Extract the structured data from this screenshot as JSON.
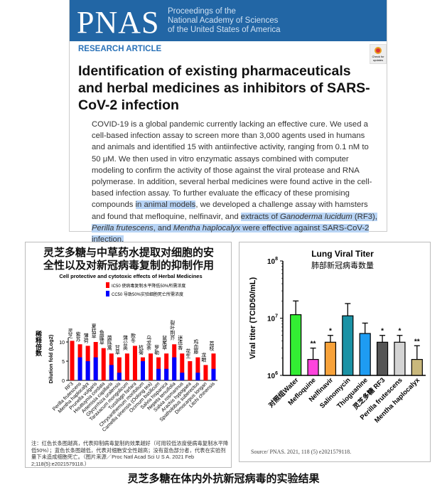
{
  "pnas": {
    "logo": "PNAS",
    "tagline": [
      "Proceedings of the",
      "National Academy of Sciences",
      "of the United States of America"
    ],
    "section": "RESEARCH ARTICLE",
    "badge": "Check for updates",
    "title": "Identification of existing pharmaceuticals and herbal medicines as inhibitors of SARS-CoV-2 infection",
    "abstract": [
      {
        "t": "COVID-19 is a global pandemic currently lacking an effective cure. We used a cell-based infection assay to screen more than 3,000 agents used in humans and animals and identified 15 with antiinfective activity, ranging from 0.1 nM to 50 μM. We then used in vitro enzymatic assays combined with computer modeling to confirm the activity of those against the viral protease and RNA polymerase. In addition, several herbal medicines were found active in the cell-based infection assay. To further evaluate the efficacy of these promising compounds "
      },
      {
        "t": "in animal models",
        "hl": true
      },
      {
        "t": ", we developed a challenge assay with hamsters and found that mefloquine, nelfinavir, and "
      },
      {
        "t": "extracts of ",
        "hl": true
      },
      {
        "t": "Ganoderma lucidum",
        "hl": true,
        "i": true
      },
      {
        "t": " (RF3), ",
        "hl": true
      },
      {
        "t": "Perilla frutescens",
        "hl": true,
        "i": true
      },
      {
        "t": ", and ",
        "hl": true
      },
      {
        "t": "Mentha haplocalyx",
        "hl": true,
        "i": true
      },
      {
        "t": " were effective against SARS-CoV-2 infection.",
        "hl": true
      }
    ]
  },
  "left_panel": {
    "title_cn": "灵芝多糖与中草药水提取对细胞的安全性以及对新冠病毒复制的抑制作用",
    "note": "注：红色长条图越高，代表抑制病毒复制的效果越好（可用较低浓度使病毒复制水平降低50%）；蓝色长条图越低，代表对细胞安全性越高；没有蓝色部分者，代表在实验剂量下未造成细胞死亡。（图片来源／Proc Natl Acad Sci U S A. 2021 Feb 2;118(5):e2021579118.）"
  },
  "right_panel": {
    "source": "Source/ PNAS. 2021, 118 (5) e2021579118."
  },
  "caption": "灵芝多糖在体内外抗新冠病毒的实验结果",
  "chart_data": [
    {
      "type": "bar",
      "title": "Cell protective and cytotoxic effects of Herbal Medicines",
      "legend": [
        {
          "name": "IC50 使病毒复制水平降低50%所需浓度",
          "color": "#ff0000"
        },
        {
          "name": "CC50 导致50%实验细胞死亡所需浓度",
          "color": "#0000ff"
        }
      ],
      "ylabel": "Dilution fold (Log2)",
      "ylabel_cn": "稀释倍数",
      "ylim": [
        0,
        11
      ],
      "yticks": [
        0,
        5,
        10
      ],
      "categories": [
        "RF3",
        "Perilla frutescens",
        "Mentha haplocalyx",
        "Prunella vulgaris",
        "Houttuynia cordata",
        "Artemisia capillaris",
        "Glycyrrhiza uralensis",
        "Taraxacum mongolicum",
        "Tussilago farfara",
        "Chrysanthemum morifolium",
        "Camellia sinensis (Oolong tea)",
        "Ocimum basilicum",
        "Salvia hispanica",
        "Nepeta tenuifolia",
        "Salvia rosmarinus",
        "Arachis hypogaea",
        "Spatholobus suberectus",
        "Dimocarpus longan",
        "Litchi chinensis"
      ],
      "labels_cn": [
        "灵芝",
        "紫苏",
        "薄荷",
        "夏枯草",
        "鱼腥草",
        "茵陈蒿",
        "甘草",
        "蒲公英",
        "款冬",
        "杭菊",
        "乌龙茶",
        "罗勒",
        "鼠尾草",
        "裂叶荆芥",
        "迷迭香",
        "花生",
        "鸡血藤",
        "龙眼",
        "荔枝"
      ],
      "series": [
        {
          "name": "IC50",
          "values": [
            10.3,
            9.4,
            9,
            10,
            8.4,
            7,
            6,
            7,
            9,
            6,
            7,
            6,
            7,
            9.4,
            7,
            5,
            6,
            4,
            7
          ]
        },
        {
          "name": "CC50",
          "values": [
            0,
            6,
            5,
            6,
            0,
            4,
            2,
            0,
            0,
            5,
            0,
            3,
            3,
            6,
            2,
            0,
            2,
            0,
            3
          ]
        }
      ]
    },
    {
      "type": "bar",
      "title": "Lung Viral Titer",
      "subtitle": "肺部新冠病毒数量",
      "ylabel": "Viral titer (TCID50/mL)",
      "yscale": "log",
      "ylim": [
        1000000,
        100000000
      ],
      "yticks": [
        "10^6",
        "10^7",
        "10^8"
      ],
      "categories": [
        "对照组Water",
        "Mefloquine",
        "Nelfinavir",
        "Salinomycin",
        "Thioguanine",
        "灵芝多糖 RF3",
        "Perilla frutescens",
        "Mentha haplocalyx"
      ],
      "values": [
        11500000,
        1900000,
        3800000,
        11000000,
        5400000,
        3800000,
        3800000,
        1900000
      ],
      "error_upper": [
        20000000,
        3000000,
        5000000,
        18000000,
        8200000,
        5000000,
        5000000,
        3300000
      ],
      "significance": [
        "",
        "**",
        "*",
        "",
        "",
        "*",
        "*",
        "**"
      ],
      "colors": [
        "#33ee33",
        "#ff44dd",
        "#f7a23a",
        "#1b92a5",
        "#1e9cf2",
        "#555555",
        "#d4d4d4",
        "#c9b87c"
      ]
    }
  ]
}
